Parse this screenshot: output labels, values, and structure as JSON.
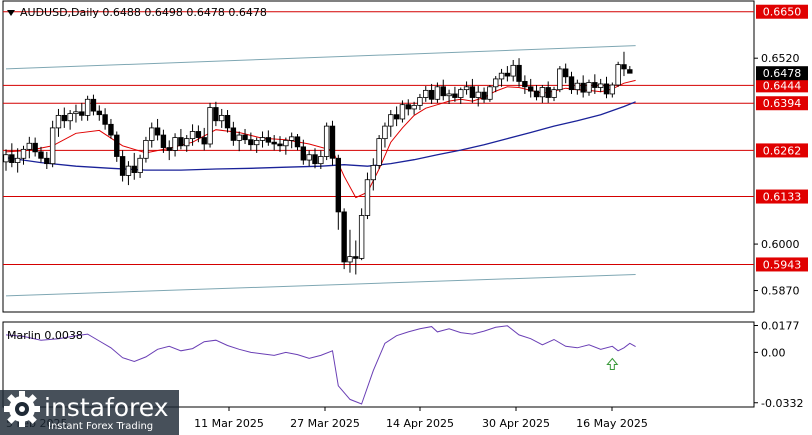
{
  "header": {
    "symbol_line": "AUDUSD,Daily  0.6488 0.6498 0.6478 0.6478"
  },
  "watermark": {
    "brand": "instaforex",
    "tagline": "Instant Forex Trading"
  },
  "colors": {
    "level_line": "#d40000",
    "level_label_bg": "#e00000",
    "ma_fast": "#e00000",
    "ma_slow": "#1a2299",
    "channel": "#7fa7b3",
    "candle_bull": "#ffffff",
    "candle_bear": "#000000",
    "oscillator": "#6a3fb5",
    "signal_arrow": "#3a9a3a",
    "price_label_bg": "#000000"
  },
  "chart_data": [
    {
      "type": "candlestick",
      "title": "AUDUSD,Daily",
      "price_ylim": [
        0.581,
        0.668
      ],
      "y_ticks": [
        "0.6520",
        "0.6000",
        "0.5870"
      ],
      "current_price": "0.6478",
      "levels": [
        {
          "value": 0.665,
          "label": "0.6650"
        },
        {
          "value": 0.6444,
          "label": "0.6444"
        },
        {
          "value": 0.6394,
          "label": "0.6394"
        },
        {
          "value": 0.6262,
          "label": "0.6262"
        },
        {
          "value": 0.6133,
          "label": "0.6133"
        },
        {
          "value": 0.5943,
          "label": "0.5943"
        }
      ],
      "x_labels": [
        "5 Feb 2025",
        "11 Mar 2025",
        "27 Mar 2025",
        "14 Apr 2025",
        "30 Apr 2025",
        "16 May 2025"
      ],
      "channel_lines": [
        {
          "start_index": 0,
          "start_value": 0.649,
          "end_index": 108,
          "end_value": 0.6555
        },
        {
          "start_index": 0,
          "start_value": 0.5855,
          "end_index": 108,
          "end_value": 0.5915
        }
      ],
      "ohlc": [
        [
          0.623,
          0.6265,
          0.6205,
          0.625
        ],
        [
          0.625,
          0.6282,
          0.6215,
          0.6228
        ],
        [
          0.6228,
          0.6268,
          0.62,
          0.624
        ],
        [
          0.624,
          0.6275,
          0.6222,
          0.6265
        ],
        [
          0.6265,
          0.63,
          0.624,
          0.6282
        ],
        [
          0.6282,
          0.6298,
          0.6245,
          0.6258
        ],
        [
          0.6258,
          0.6272,
          0.6228,
          0.624
        ],
        [
          0.624,
          0.6258,
          0.621,
          0.6225
        ],
        [
          0.6225,
          0.6345,
          0.6215,
          0.6325
        ],
        [
          0.6325,
          0.6378,
          0.63,
          0.636
        ],
        [
          0.636,
          0.6382,
          0.6325,
          0.6345
        ],
        [
          0.6345,
          0.6375,
          0.632,
          0.6365
        ],
        [
          0.6365,
          0.639,
          0.634,
          0.637
        ],
        [
          0.637,
          0.6395,
          0.6345,
          0.636
        ],
        [
          0.636,
          0.6415,
          0.6345,
          0.6405
        ],
        [
          0.6405,
          0.6418,
          0.636,
          0.6372
        ],
        [
          0.6372,
          0.6388,
          0.6345,
          0.6362
        ],
        [
          0.6362,
          0.638,
          0.632,
          0.6335
        ],
        [
          0.6335,
          0.635,
          0.6295,
          0.6305
        ],
        [
          0.6305,
          0.6315,
          0.623,
          0.6245
        ],
        [
          0.6245,
          0.6262,
          0.6175,
          0.6192
        ],
        [
          0.6192,
          0.6232,
          0.6165,
          0.6218
        ],
        [
          0.6218,
          0.6255,
          0.618,
          0.62
        ],
        [
          0.62,
          0.625,
          0.6185,
          0.624
        ],
        [
          0.624,
          0.63,
          0.6228,
          0.629
        ],
        [
          0.629,
          0.634,
          0.627,
          0.6325
        ],
        [
          0.6325,
          0.635,
          0.629,
          0.6305
        ],
        [
          0.6305,
          0.632,
          0.6255,
          0.627
        ],
        [
          0.627,
          0.629,
          0.6235,
          0.6262
        ],
        [
          0.6262,
          0.631,
          0.6245,
          0.6298
        ],
        [
          0.6298,
          0.6322,
          0.6265,
          0.6275
        ],
        [
          0.6275,
          0.6305,
          0.6258,
          0.6295
        ],
        [
          0.6295,
          0.6335,
          0.6275,
          0.6315
        ],
        [
          0.6315,
          0.6332,
          0.6285,
          0.6298
        ],
        [
          0.6298,
          0.6325,
          0.6262,
          0.628
        ],
        [
          0.628,
          0.6395,
          0.627,
          0.6382
        ],
        [
          0.6382,
          0.6398,
          0.633,
          0.6345
        ],
        [
          0.6345,
          0.6378,
          0.6325,
          0.636
        ],
        [
          0.636,
          0.6375,
          0.6312,
          0.6325
        ],
        [
          0.6325,
          0.6342,
          0.6275,
          0.629
        ],
        [
          0.629,
          0.6315,
          0.626,
          0.6305
        ],
        [
          0.6305,
          0.6322,
          0.628,
          0.6292
        ],
        [
          0.6292,
          0.6312,
          0.6262,
          0.6278
        ],
        [
          0.6278,
          0.6298,
          0.6255,
          0.629
        ],
        [
          0.629,
          0.6315,
          0.627,
          0.6298
        ],
        [
          0.6298,
          0.6318,
          0.6275,
          0.6285
        ],
        [
          0.6285,
          0.6305,
          0.6262,
          0.628
        ],
        [
          0.628,
          0.6302,
          0.6258,
          0.6275
        ],
        [
          0.6275,
          0.6298,
          0.625,
          0.629
        ],
        [
          0.629,
          0.6312,
          0.6268,
          0.63
        ],
        [
          0.63,
          0.6308,
          0.6262,
          0.6272
        ],
        [
          0.6272,
          0.6292,
          0.6222,
          0.6235
        ],
        [
          0.6235,
          0.6262,
          0.6218,
          0.625
        ],
        [
          0.625,
          0.6268,
          0.6212,
          0.6225
        ],
        [
          0.6225,
          0.6262,
          0.621,
          0.6245
        ],
        [
          0.6245,
          0.634,
          0.6235,
          0.633
        ],
        [
          0.633,
          0.6345,
          0.622,
          0.624
        ],
        [
          0.624,
          0.625,
          0.604,
          0.609
        ],
        [
          0.609,
          0.61,
          0.593,
          0.595
        ],
        [
          0.595,
          0.604,
          0.592,
          0.5965
        ],
        [
          0.5965,
          0.601,
          0.5915,
          0.596
        ],
        [
          0.596,
          0.61,
          0.5955,
          0.608
        ],
        [
          0.608,
          0.62,
          0.607,
          0.618
        ],
        [
          0.618,
          0.624,
          0.615,
          0.622
        ],
        [
          0.622,
          0.6305,
          0.621,
          0.6295
        ],
        [
          0.6295,
          0.634,
          0.627,
          0.633
        ],
        [
          0.633,
          0.6375,
          0.63,
          0.6362
        ],
        [
          0.6362,
          0.6385,
          0.633,
          0.635
        ],
        [
          0.635,
          0.6402,
          0.634,
          0.639
        ],
        [
          0.639,
          0.6405,
          0.636,
          0.6378
        ],
        [
          0.6378,
          0.6398,
          0.6362,
          0.6388
        ],
        [
          0.6388,
          0.642,
          0.6375,
          0.641
        ],
        [
          0.641,
          0.6442,
          0.6398,
          0.643
        ],
        [
          0.643,
          0.6448,
          0.6392,
          0.6405
        ],
        [
          0.6405,
          0.6452,
          0.6395,
          0.644
        ],
        [
          0.644,
          0.646,
          0.6402,
          0.6415
        ],
        [
          0.6415,
          0.6432,
          0.6392,
          0.642
        ],
        [
          0.642,
          0.644,
          0.6398,
          0.641
        ],
        [
          0.641,
          0.6438,
          0.6392,
          0.6432
        ],
        [
          0.6432,
          0.6455,
          0.6418,
          0.644
        ],
        [
          0.644,
          0.6462,
          0.6395,
          0.641
        ],
        [
          0.641,
          0.6442,
          0.6385,
          0.6425
        ],
        [
          0.6425,
          0.6438,
          0.6395,
          0.6405
        ],
        [
          0.6405,
          0.6445,
          0.6398,
          0.644
        ],
        [
          0.644,
          0.647,
          0.6425,
          0.6462
        ],
        [
          0.6462,
          0.649,
          0.644,
          0.6478
        ],
        [
          0.6478,
          0.6498,
          0.6455,
          0.647
        ],
        [
          0.647,
          0.6515,
          0.6455,
          0.65
        ],
        [
          0.65,
          0.652,
          0.644,
          0.6455
        ],
        [
          0.6455,
          0.6472,
          0.642,
          0.644
        ],
        [
          0.644,
          0.6462,
          0.641,
          0.6428
        ],
        [
          0.6428,
          0.6445,
          0.6402,
          0.6412
        ],
        [
          0.6412,
          0.6445,
          0.6395,
          0.6438
        ],
        [
          0.6438,
          0.6455,
          0.6395,
          0.641
        ],
        [
          0.641,
          0.644,
          0.64,
          0.6432
        ],
        [
          0.6432,
          0.6498,
          0.6425,
          0.649
        ],
        [
          0.649,
          0.6505,
          0.645,
          0.6468
        ],
        [
          0.6468,
          0.6482,
          0.642,
          0.6432
        ],
        [
          0.6432,
          0.646,
          0.6418,
          0.645
        ],
        [
          0.645,
          0.6472,
          0.641,
          0.6425
        ],
        [
          0.6425,
          0.646,
          0.6415,
          0.6452
        ],
        [
          0.6452,
          0.6475,
          0.642,
          0.6438
        ],
        [
          0.6438,
          0.6462,
          0.6425,
          0.6448
        ],
        [
          0.6448,
          0.6468,
          0.6408,
          0.642
        ],
        [
          0.642,
          0.6452,
          0.641,
          0.6445
        ],
        [
          0.6445,
          0.651,
          0.644,
          0.6502
        ],
        [
          0.6502,
          0.6538,
          0.647,
          0.649
        ],
        [
          0.6488,
          0.6498,
          0.6478,
          0.6478
        ]
      ],
      "ma_fast": [
        [
          0,
          0.6258
        ],
        [
          4,
          0.6262
        ],
        [
          8,
          0.6275
        ],
        [
          12,
          0.631
        ],
        [
          16,
          0.6318
        ],
        [
          20,
          0.6275
        ],
        [
          24,
          0.6255
        ],
        [
          28,
          0.6268
        ],
        [
          32,
          0.6285
        ],
        [
          36,
          0.632
        ],
        [
          40,
          0.6312
        ],
        [
          44,
          0.6296
        ],
        [
          48,
          0.6292
        ],
        [
          52,
          0.628
        ],
        [
          56,
          0.6262
        ],
        [
          58,
          0.619
        ],
        [
          60,
          0.613
        ],
        [
          62,
          0.6145
        ],
        [
          64,
          0.621
        ],
        [
          66,
          0.6285
        ],
        [
          68,
          0.6325
        ],
        [
          70,
          0.636
        ],
        [
          72,
          0.638
        ],
        [
          74,
          0.639
        ],
        [
          76,
          0.64
        ],
        [
          78,
          0.6405
        ],
        [
          80,
          0.64
        ],
        [
          82,
          0.641
        ],
        [
          84,
          0.6428
        ],
        [
          86,
          0.644
        ],
        [
          88,
          0.6438
        ],
        [
          90,
          0.643
        ],
        [
          92,
          0.6422
        ],
        [
          94,
          0.6428
        ],
        [
          96,
          0.6436
        ],
        [
          98,
          0.6432
        ],
        [
          100,
          0.643
        ],
        [
          102,
          0.6426
        ],
        [
          104,
          0.6434
        ],
        [
          106,
          0.645
        ],
        [
          108,
          0.6458
        ]
      ],
      "ma_slow": [
        [
          0,
          0.6242
        ],
        [
          6,
          0.6228
        ],
        [
          12,
          0.6218
        ],
        [
          18,
          0.6212
        ],
        [
          24,
          0.6207
        ],
        [
          30,
          0.6207
        ],
        [
          36,
          0.621
        ],
        [
          42,
          0.6212
        ],
        [
          48,
          0.6215
        ],
        [
          54,
          0.6218
        ],
        [
          58,
          0.6222
        ],
        [
          62,
          0.6218
        ],
        [
          66,
          0.6225
        ],
        [
          70,
          0.6236
        ],
        [
          74,
          0.625
        ],
        [
          78,
          0.6263
        ],
        [
          82,
          0.6278
        ],
        [
          86,
          0.6295
        ],
        [
          90,
          0.6312
        ],
        [
          94,
          0.633
        ],
        [
          98,
          0.6345
        ],
        [
          102,
          0.6362
        ],
        [
          106,
          0.6385
        ],
        [
          108,
          0.6398
        ]
      ],
      "oscillator": {
        "title": "Marlin 0.0038",
        "ylim": [
          -0.036,
          0.02
        ],
        "y_ticks": [
          "0.0177",
          "0.00",
          "-0.0332"
        ],
        "values": [
          [
            0,
            0.0115
          ],
          [
            3,
            0.0105
          ],
          [
            6,
            0.008
          ],
          [
            9,
            0.009
          ],
          [
            12,
            0.011
          ],
          [
            14,
            0.012
          ],
          [
            16,
            0.0075
          ],
          [
            18,
            0.003
          ],
          [
            20,
            -0.0035
          ],
          [
            22,
            -0.006
          ],
          [
            24,
            -0.003
          ],
          [
            26,
            0.002
          ],
          [
            28,
            0.004
          ],
          [
            30,
            0.001
          ],
          [
            32,
            0.0025
          ],
          [
            34,
            0.007
          ],
          [
            36,
            0.008
          ],
          [
            38,
            0.0045
          ],
          [
            40,
            0.002
          ],
          [
            42,
            0.0
          ],
          [
            44,
            -0.001
          ],
          [
            46,
            -0.002
          ],
          [
            48,
            0.0
          ],
          [
            50,
            -0.0015
          ],
          [
            52,
            -0.004
          ],
          [
            54,
            -0.002
          ],
          [
            56,
            0.001
          ],
          [
            57,
            -0.022
          ],
          [
            59,
            -0.031
          ],
          [
            61,
            -0.034
          ],
          [
            63,
            -0.012
          ],
          [
            65,
            0.006
          ],
          [
            67,
            0.011
          ],
          [
            69,
            0.0135
          ],
          [
            71,
            0.0155
          ],
          [
            73,
            0.017
          ],
          [
            74,
            0.0135
          ],
          [
            76,
            0.0155
          ],
          [
            78,
            0.013
          ],
          [
            80,
            0.012
          ],
          [
            82,
            0.014
          ],
          [
            84,
            0.0165
          ],
          [
            86,
            0.0175
          ],
          [
            88,
            0.0115
          ],
          [
            90,
            0.009
          ],
          [
            92,
            0.005
          ],
          [
            94,
            0.0085
          ],
          [
            96,
            0.004
          ],
          [
            98,
            0.003
          ],
          [
            100,
            0.005
          ],
          [
            102,
            0.002
          ],
          [
            104,
            0.004
          ],
          [
            105,
            0.001
          ],
          [
            106,
            0.003
          ],
          [
            107,
            0.006
          ],
          [
            108,
            0.0038
          ]
        ],
        "signal_arrow_index": 104
      }
    }
  ]
}
